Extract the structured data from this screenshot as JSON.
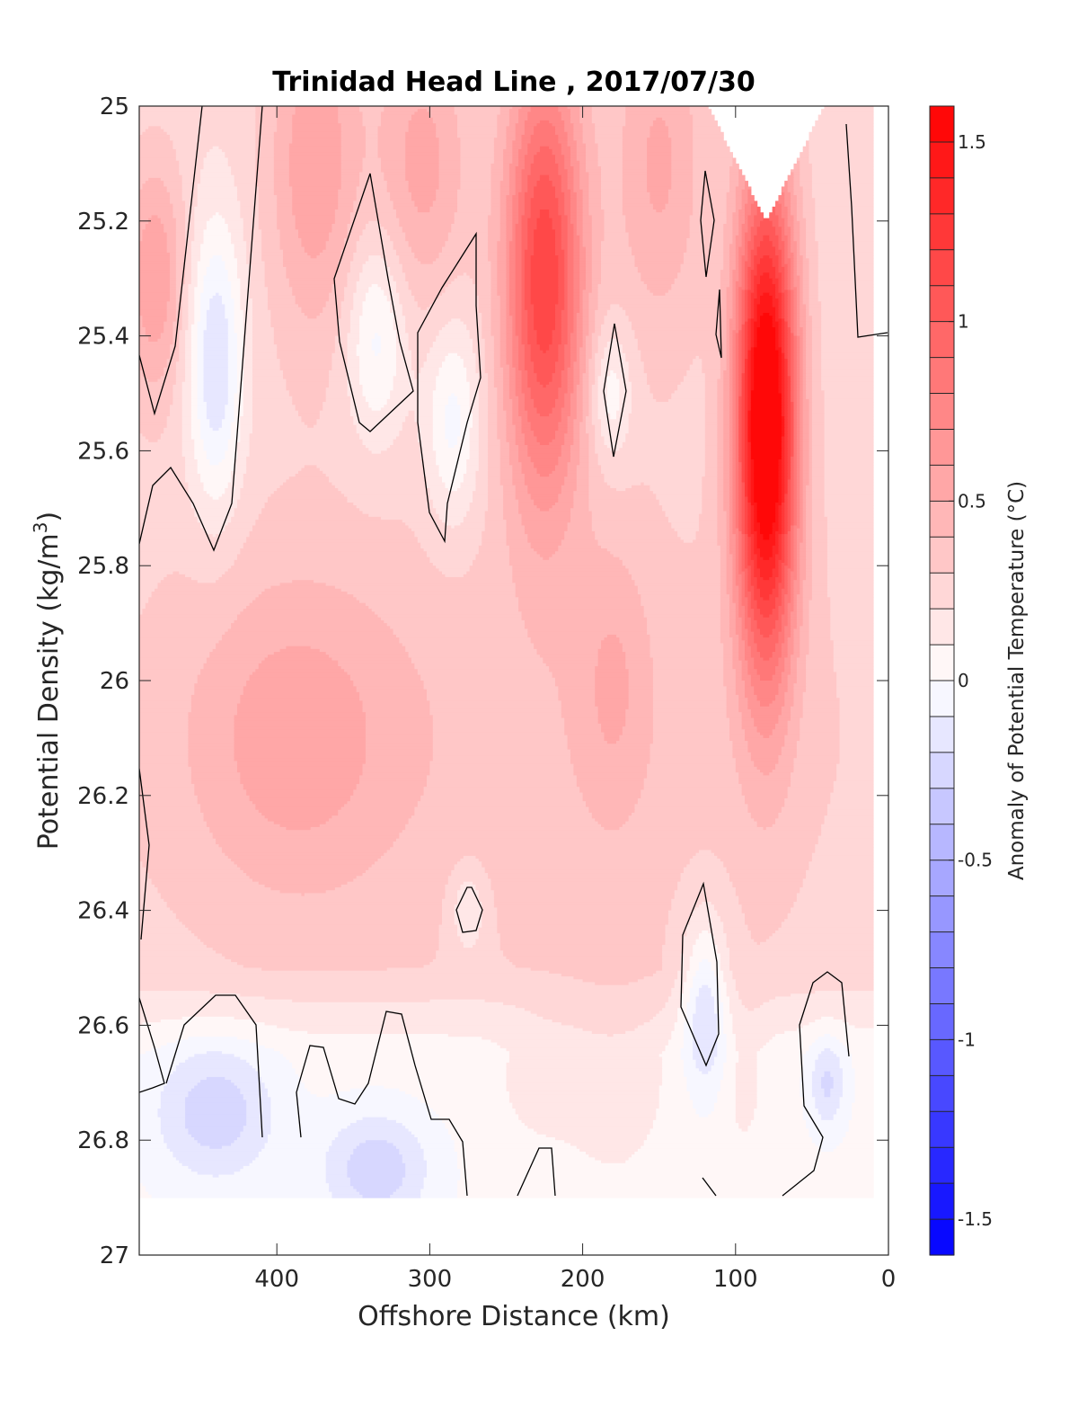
{
  "chart_data": {
    "type": "heatmap",
    "title": "Trinidad Head Line , 2017/07/30",
    "xlabel": "Offshore Distance (km)",
    "ylabel": "Potential Density (kg/m3)",
    "ylabel_parts": {
      "base": "Potential Density (kg/m",
      "sup": "3",
      "close": ")"
    },
    "xlim": [
      490,
      0
    ],
    "ylim": [
      25,
      27
    ],
    "x_axis_reversed": true,
    "y_axis_reversed": true,
    "xticks": [
      400,
      300,
      200,
      100,
      0
    ],
    "xtick_labels": [
      "400",
      "300",
      "200",
      "100",
      "0"
    ],
    "yticks": [
      25,
      25.2,
      25.4,
      25.6,
      25.8,
      26,
      26.2,
      26.4,
      26.6,
      26.8,
      27
    ],
    "ytick_labels": [
      "25",
      "25.2",
      "25.4",
      "25.6",
      "25.8",
      "26",
      "26.2",
      "26.4",
      "26.6",
      "26.8",
      "27"
    ],
    "colorbar": {
      "label": "Anomaly of Potential Temperature (°C)",
      "range": [
        -1.6,
        1.6
      ],
      "levels": 32,
      "ticks": [
        1.5,
        1,
        0.5,
        0,
        -0.5,
        -1,
        -1.5
      ],
      "tick_labels": [
        "1.5",
        "1",
        "0.5",
        "0",
        "-0.5",
        "-1",
        "-1.5"
      ],
      "colormap": "blue-white-red",
      "color_min": "#0000ff",
      "color_mid": "#ffffff",
      "color_max": "#ff0000"
    },
    "contour_color": "#000000",
    "data_extent": {
      "x": [
        490,
        10
      ],
      "y": [
        25,
        26.9
      ]
    },
    "anomaly_features": [
      {
        "x_km": 80,
        "density": 25.5,
        "anomaly_c": 1.5,
        "sign": "warm"
      },
      {
        "x_km": 225,
        "density": 25.3,
        "anomaly_c": 1.0,
        "sign": "warm"
      },
      {
        "x_km": 390,
        "density": 26.05,
        "anomaly_c": 0.5,
        "sign": "warm"
      },
      {
        "x_km": 180,
        "density": 26.0,
        "anomaly_c": 0.45,
        "sign": "warm"
      },
      {
        "x_km": 440,
        "density": 25.5,
        "anomaly_c": -0.15,
        "sign": "cool"
      },
      {
        "x_km": 335,
        "density": 26.85,
        "anomaly_c": -0.15,
        "sign": "cool"
      },
      {
        "x_km": 120,
        "density": 26.55,
        "anomaly_c": -0.15,
        "sign": "cool"
      }
    ]
  }
}
